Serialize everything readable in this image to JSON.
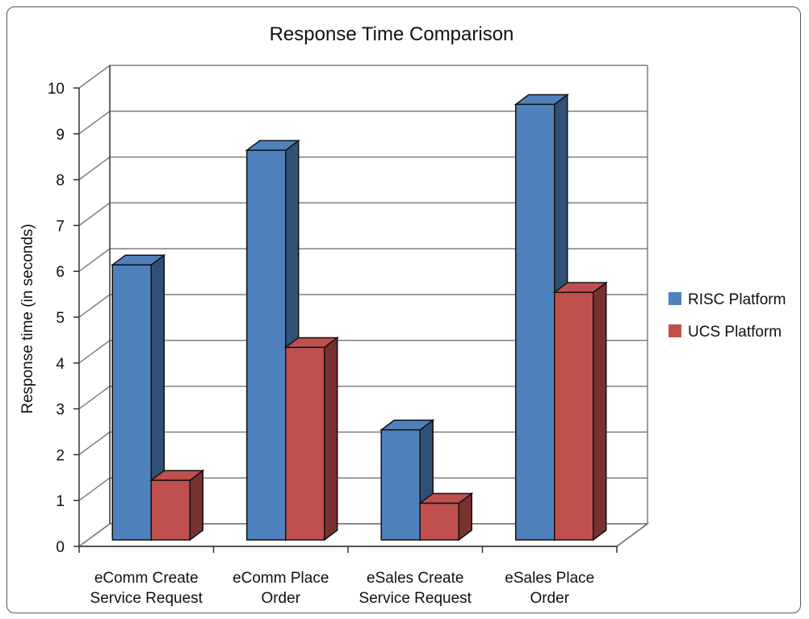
{
  "chart_data": {
    "type": "bar",
    "title": "Response Time Comparison",
    "ylabel": "Response time (in seconds)",
    "xlabel": "",
    "ylim": [
      0,
      10
    ],
    "yticks": [
      0,
      1,
      2,
      3,
      4,
      5,
      6,
      7,
      8,
      9,
      10
    ],
    "categories": [
      [
        "eComm Create",
        "Service Request"
      ],
      [
        "eComm Place",
        "Order"
      ],
      [
        "eSales Create",
        "Service Request"
      ],
      [
        "eSales Place",
        "Order"
      ]
    ],
    "series": [
      {
        "name": "RISC Platform",
        "color": "#4F81BD",
        "values": [
          6.0,
          8.5,
          2.4,
          9.5
        ]
      },
      {
        "name": "UCS Platform",
        "color": "#C0504D",
        "values": [
          1.3,
          4.2,
          0.8,
          5.4
        ]
      }
    ],
    "grid": true,
    "legend": "right"
  }
}
